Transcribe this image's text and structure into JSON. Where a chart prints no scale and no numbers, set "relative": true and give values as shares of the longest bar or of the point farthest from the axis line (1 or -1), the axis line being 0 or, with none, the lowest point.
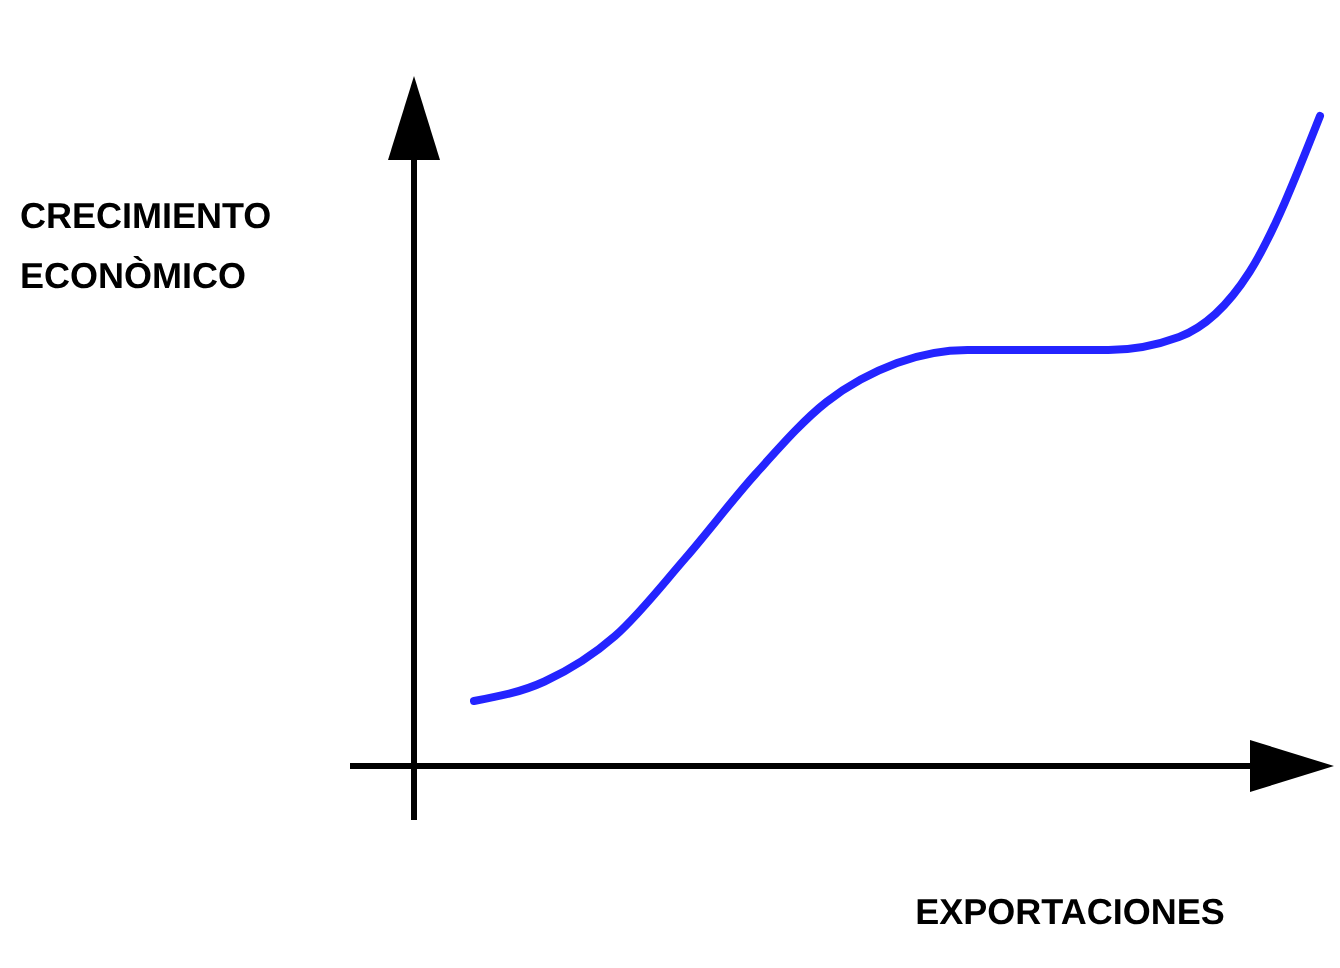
{
  "chart_data": {
    "type": "line",
    "relative": true,
    "xlabel": "EXPORTACIONES",
    "ylabel": "CRECIMIENTO\nECONÒMICO",
    "categories": [
      null,
      null,
      null,
      null,
      null,
      null,
      null,
      null,
      null,
      null,
      null,
      null,
      null
    ],
    "series": [
      {
        "color": "#2424ff",
        "values": [
          0.1,
          0.13,
          0.2,
          0.32,
          0.45,
          0.56,
          0.62,
          0.64,
          0.64,
          0.64,
          0.66,
          0.76,
          1.0
        ]
      }
    ],
    "line_style": "solid",
    "marker": "none"
  }
}
